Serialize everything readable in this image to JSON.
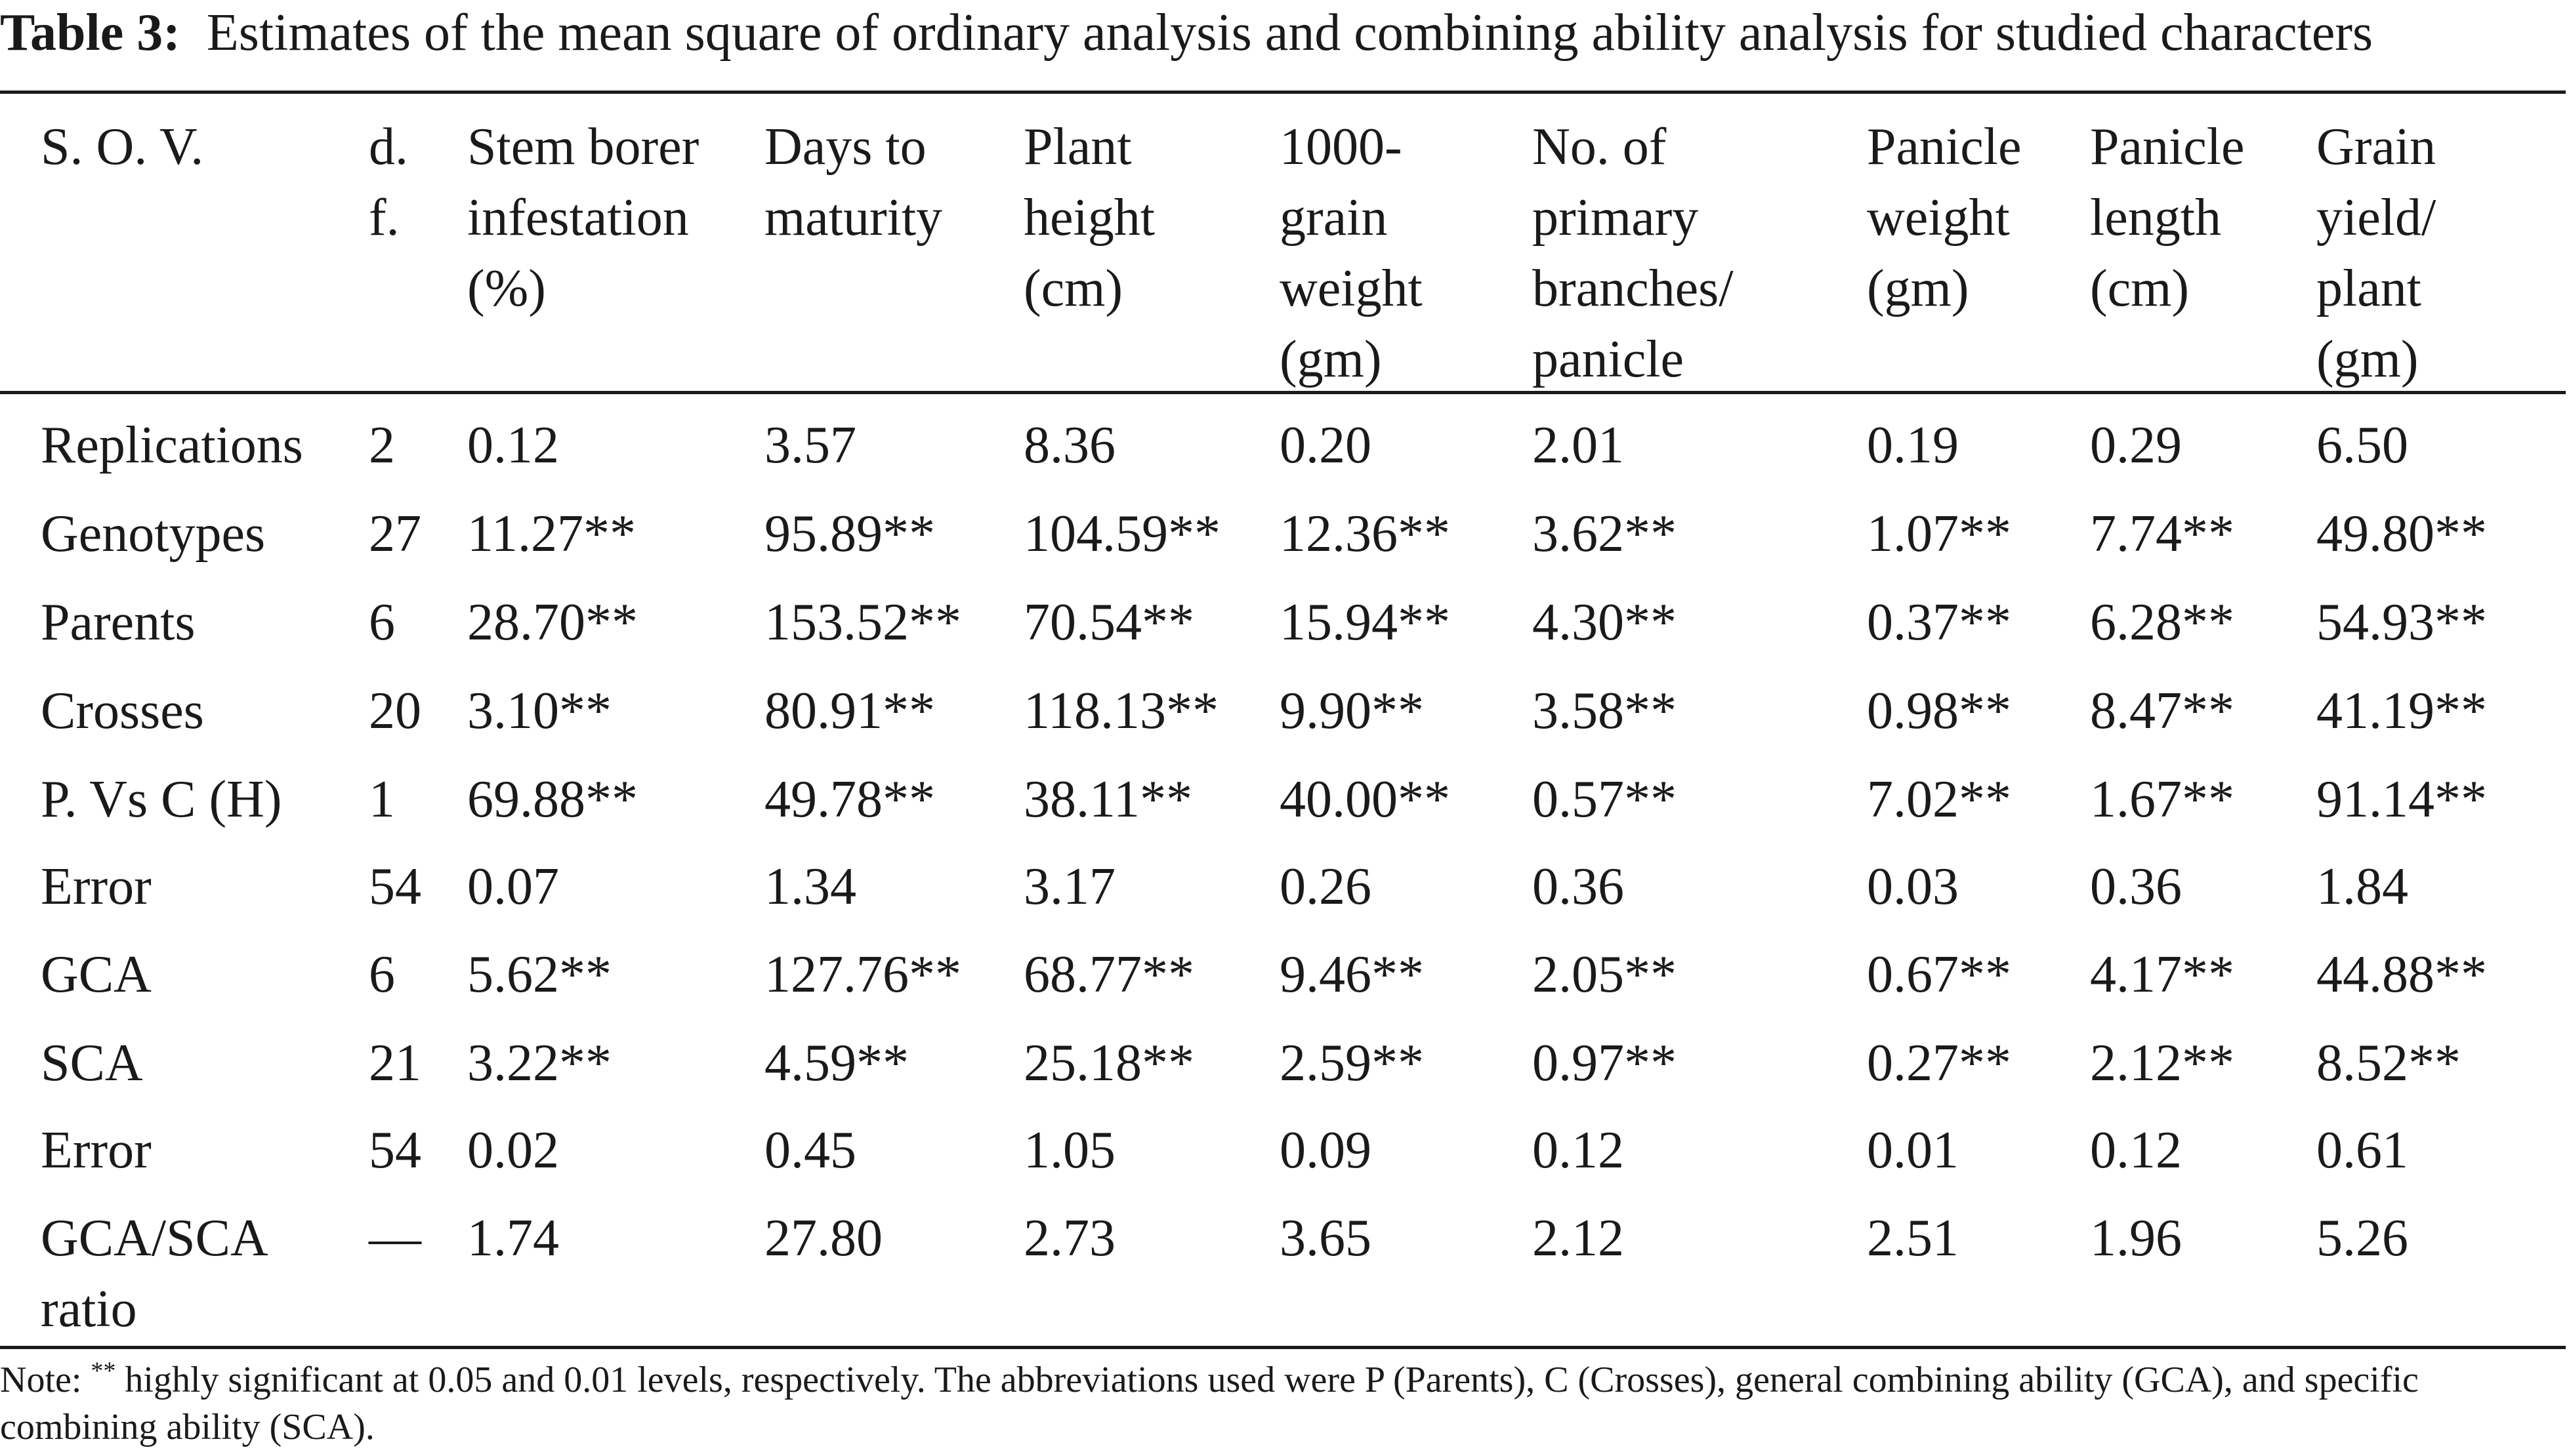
{
  "caption": {
    "label": "Table 3:",
    "text": "Estimates of the mean square of ordinary analysis and combining ability analysis for studied characters"
  },
  "table": {
    "columns": [
      "S. O. V.",
      "d. f.",
      "Stem borer infestation (%)",
      "Days to maturity",
      "Plant height (cm)",
      "1000- grain weight (gm)",
      "No. of primary branches/ panicle",
      "Panicle weight (gm)",
      "Panicle length (cm)",
      "Grain yield/ plant (gm)"
    ],
    "header_lines": [
      [
        "S. O. V."
      ],
      [
        "d.",
        "f."
      ],
      [
        "Stem borer",
        "infestation",
        "(%)"
      ],
      [
        "Days to",
        "maturity"
      ],
      [
        "Plant",
        "height",
        "(cm)"
      ],
      [
        "1000-",
        "grain",
        "weight",
        "(gm)"
      ],
      [
        "No. of",
        "primary",
        "branches/",
        "panicle"
      ],
      [
        "Panicle",
        "weight",
        "(gm)"
      ],
      [
        "Panicle",
        "length",
        "(cm)"
      ],
      [
        "Grain",
        "yield/",
        "plant",
        "(gm)"
      ]
    ],
    "rows": [
      [
        "Replications",
        "2",
        "0.12",
        "3.57",
        "8.36",
        "0.20",
        "2.01",
        "0.19",
        "0.29",
        "6.50"
      ],
      [
        "Genotypes",
        "27",
        "11.27**",
        "95.89**",
        "104.59**",
        "12.36**",
        "3.62**",
        "1.07**",
        "7.74**",
        "49.80**"
      ],
      [
        "Parents",
        "6",
        "28.70**",
        "153.52**",
        "70.54**",
        "15.94**",
        "4.30**",
        "0.37**",
        "6.28**",
        "54.93**"
      ],
      [
        "Crosses",
        "20",
        "3.10**",
        "80.91**",
        "118.13**",
        "9.90**",
        "3.58**",
        "0.98**",
        "8.47**",
        "41.19**"
      ],
      [
        "P. Vs C (H)",
        "1",
        "69.88**",
        "49.78**",
        "38.11**",
        "40.00**",
        "0.57**",
        "7.02**",
        "1.67**",
        "91.14**"
      ],
      [
        "Error",
        "54",
        "0.07",
        "1.34",
        "3.17",
        "0.26",
        "0.36",
        "0.03",
        "0.36",
        "1.84"
      ],
      [
        "GCA",
        "6",
        "5.62**",
        "127.76**",
        "68.77**",
        "9.46**",
        "2.05**",
        "0.67**",
        "4.17**",
        "44.88**"
      ],
      [
        "SCA",
        "21",
        "3.22**",
        "4.59**",
        "25.18**",
        "2.59**",
        "0.97**",
        "0.27**",
        "2.12**",
        "8.52**"
      ],
      [
        "Error",
        "54",
        "0.02",
        "0.45",
        "1.05",
        "0.09",
        "0.12",
        "0.01",
        "0.12",
        "0.61"
      ],
      [
        "GCA/SCA ratio",
        "—",
        "1.74",
        "27.80",
        "2.73",
        "3.65",
        "2.12",
        "2.51",
        "1.96",
        "5.26"
      ]
    ],
    "last_row_label_lines": [
      "GCA/SCA",
      "ratio"
    ]
  },
  "note": {
    "prefix": "Note: ",
    "superscript": "**",
    "text": " highly significant at 0.05 and 0.01 levels, respectively. The abbreviations used were P (Parents), C (Crosses), general combining ability (GCA), and specific combining ability (SCA)."
  }
}
